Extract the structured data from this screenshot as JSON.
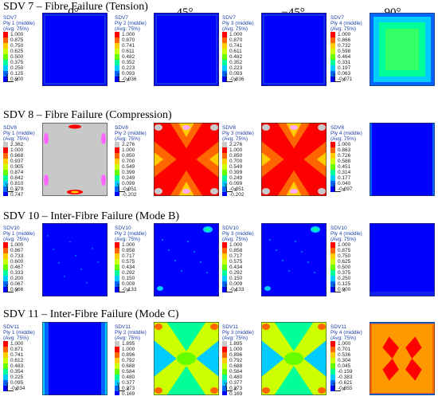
{
  "column_headers": [
    "0°",
    "45°",
    "−45°",
    "90°"
  ],
  "sections": [
    {
      "title": "SDV 7 – Fibre Failure (Tension)",
      "panels": [
        {
          "var": "SDV7",
          "ply": "Ply 1 (middle)",
          "avg": "(Avg: 75%)",
          "values": [
            "1.000",
            "0.875",
            "0.750",
            "0.625",
            "0.500",
            "0.375",
            "0.250",
            "0.125",
            "0.000"
          ]
        },
        {
          "var": "SDV7",
          "ply": "Ply 2 (middle)",
          "avg": "(Avg: 75%)",
          "values": [
            "1.000",
            "0.870",
            "0.741",
            "0.611",
            "0.482",
            "0.352",
            "0.223",
            "0.093",
            "-0.036"
          ]
        },
        {
          "var": "SDV7",
          "ply": "Ply 3 (middle)",
          "avg": "(Avg: 75%)",
          "values": [
            "1.000",
            "0.870",
            "0.741",
            "0.611",
            "0.482",
            "0.352",
            "0.223",
            "0.093",
            "-0.036"
          ]
        },
        {
          "var": "SDV7",
          "ply": "Ply 4 (middle)",
          "avg": "(Avg: 75%)",
          "values": [
            "1.000",
            "0.866",
            "0.732",
            "0.598",
            "0.464",
            "0.331",
            "0.197",
            "0.063",
            "-0.071"
          ]
        }
      ]
    },
    {
      "title": "SDV 8 – Fibre Failure (Compression)",
      "panels": [
        {
          "var": "SDV8",
          "ply": "Ply 1 (middle)",
          "avg": "(Avg: 75%)",
          "values": [
            "2.362",
            "1.000",
            "0.968",
            "0.937",
            "0.905",
            "0.874",
            "0.842",
            "0.810",
            "0.779",
            "0.747"
          ]
        },
        {
          "var": "SDV8",
          "ply": "Ply 2 (middle)",
          "avg": "(Avg: 75%)",
          "values": [
            "2.276",
            "1.000",
            "0.850",
            "0.700",
            "0.549",
            "0.399",
            "0.249",
            "0.099",
            "-0.051",
            "-0.202"
          ]
        },
        {
          "var": "SDV8",
          "ply": "Ply 3 (middle)",
          "avg": "(Avg: 75%)",
          "values": [
            "2.276",
            "1.000",
            "0.850",
            "0.700",
            "0.549",
            "0.399",
            "0.249",
            "0.099",
            "-0.051",
            "-0.202"
          ]
        },
        {
          "var": "SDV8",
          "ply": "Ply 4 (middle)",
          "avg": "(Avg: 75%)",
          "values": [
            "1.000",
            "0.863",
            "0.726",
            "0.588",
            "0.451",
            "0.314",
            "0.177",
            "0.040",
            "-0.097"
          ]
        }
      ]
    },
    {
      "title": "SDV 10 – Inter-Fibre Failure (Mode B)",
      "panels": [
        {
          "var": "SDV10",
          "ply": "Ply 1 (middle)",
          "avg": "(Avg: 75%)",
          "values": [
            "1.000",
            "0.867",
            "0.733",
            "0.600",
            "0.467",
            "0.333",
            "0.200",
            "0.067",
            "0.066"
          ]
        },
        {
          "var": "SDV10",
          "ply": "Ply 2 (middle)",
          "avg": "(Avg: 75%)",
          "values": [
            "1.000",
            "0.858",
            "0.717",
            "0.575",
            "0.434",
            "0.292",
            "0.150",
            "0.009",
            "-0.133"
          ]
        },
        {
          "var": "SDV10",
          "ply": "Ply 3 (middle)",
          "avg": "(Avg: 75%)",
          "values": [
            "1.000",
            "0.858",
            "0.717",
            "0.575",
            "0.434",
            "0.292",
            "0.150",
            "0.009",
            "-0.133"
          ]
        },
        {
          "var": "SDV10",
          "ply": "Ply 4 (middle)",
          "avg": "(Avg: 75%)",
          "values": [
            "1.000",
            "0.875",
            "0.750",
            "0.625",
            "0.500",
            "0.375",
            "0.250",
            "0.125",
            "0.000"
          ]
        }
      ]
    },
    {
      "title": "SDV 11 – Inter-Fibre Failure (Mode C)",
      "panels": [
        {
          "var": "SDV11",
          "ply": "Ply 1 (middle)",
          "avg": "(Avg: 75%)",
          "values": [
            "1.000",
            "0.871",
            "0.741",
            "0.612",
            "0.483",
            "0.354",
            "0.225",
            "0.095",
            "-0.034"
          ]
        },
        {
          "var": "SDV11",
          "ply": "Ply 2 (middle)",
          "avg": "(Avg: 75%)",
          "values": [
            "1.895",
            "1.000",
            "0.896",
            "0.792",
            "0.688",
            "0.584",
            "0.480",
            "0.377",
            "0.273",
            "0.169"
          ]
        },
        {
          "var": "SDV11",
          "ply": "Ply 3 (middle)",
          "avg": "(Avg: 75%)",
          "values": [
            "1.895",
            "1.000",
            "0.896",
            "0.792",
            "0.688",
            "0.584",
            "0.480",
            "0.377",
            "0.273",
            "0.169"
          ]
        },
        {
          "var": "SDV11",
          "ply": "Ply 4 (middle)",
          "avg": "(Avg: 75%)",
          "values": [
            "1.000",
            "0.701",
            "0.536",
            "0.304",
            "0.045",
            "-0.159",
            "-0.383",
            "-0.621",
            "-0.855"
          ]
        }
      ]
    }
  ],
  "axis_labels": {
    "y": "y",
    "x": "x"
  },
  "contour_colors": [
    "#0000ff",
    "#0066ff",
    "#00ccff",
    "#00ff99",
    "#66ff00",
    "#ccff00",
    "#ffcc00",
    "#ff6600",
    "#ff0000"
  ],
  "overflow_color": "#c8c8c8"
}
